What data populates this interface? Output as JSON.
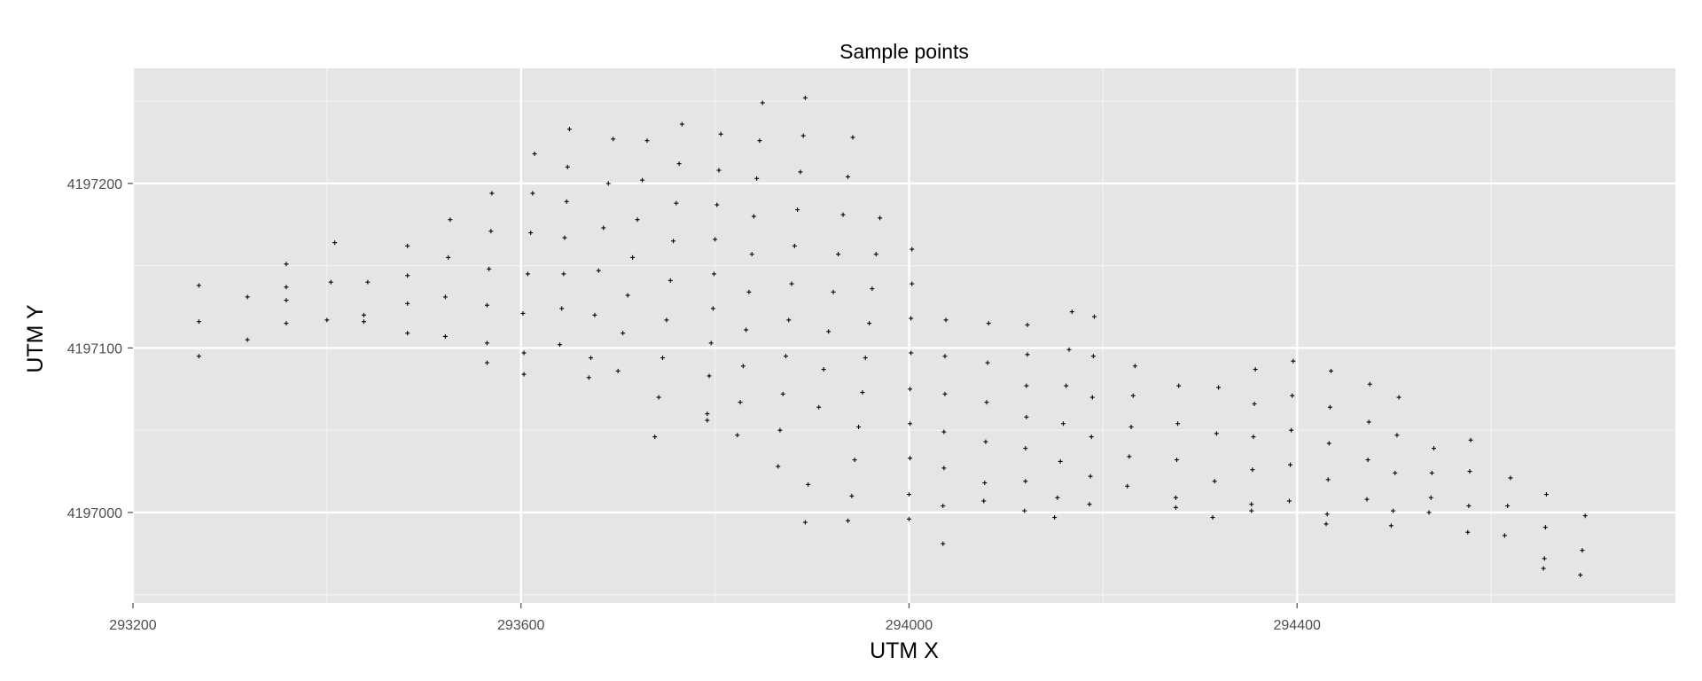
{
  "chart_data": {
    "type": "scatter",
    "title": "Sample points",
    "xlabel": "UTM X",
    "ylabel": "UTM Y",
    "xlim": [
      293200,
      294790
    ],
    "ylim": [
      4196945,
      4197270
    ],
    "x_ticks": [
      293200,
      293600,
      294000,
      294400
    ],
    "x_tick_labels": [
      "293200",
      "293600",
      "294000",
      "294400"
    ],
    "y_ticks": [
      4197000,
      4197100,
      4197200
    ],
    "y_tick_labels": [
      "4197000",
      "4197100",
      "4197200"
    ],
    "grid": true,
    "legend": "none",
    "marker": "plus",
    "points": [
      [
        293268,
        4197138
      ],
      [
        293268,
        4197116
      ],
      [
        293268,
        4197095
      ],
      [
        293318,
        4197131
      ],
      [
        293318,
        4197105
      ],
      [
        293358,
        4197151
      ],
      [
        293358,
        4197137
      ],
      [
        293358,
        4197129
      ],
      [
        293358,
        4197115
      ],
      [
        293400,
        4197117
      ],
      [
        293404,
        4197140
      ],
      [
        293408,
        4197164
      ],
      [
        293438,
        4197120
      ],
      [
        293438,
        4197116
      ],
      [
        293442,
        4197140
      ],
      [
        293483,
        4197162
      ],
      [
        293483,
        4197144
      ],
      [
        293483,
        4197127
      ],
      [
        293483,
        4197109
      ],
      [
        293522,
        4197131
      ],
      [
        293522,
        4197107
      ],
      [
        293525,
        4197155
      ],
      [
        293527,
        4197178
      ],
      [
        293565,
        4197126
      ],
      [
        293565,
        4197103
      ],
      [
        293565,
        4197091
      ],
      [
        293567,
        4197148
      ],
      [
        293569,
        4197171
      ],
      [
        293570,
        4197194
      ],
      [
        293602,
        4197121
      ],
      [
        293603,
        4197097
      ],
      [
        293603,
        4197084
      ],
      [
        293607,
        4197145
      ],
      [
        293610,
        4197170
      ],
      [
        293612,
        4197194
      ],
      [
        293614,
        4197218
      ],
      [
        293640,
        4197102
      ],
      [
        293642,
        4197124
      ],
      [
        293644,
        4197145
      ],
      [
        293645,
        4197167
      ],
      [
        293647,
        4197189
      ],
      [
        293648,
        4197210
      ],
      [
        293650,
        4197233
      ],
      [
        293670,
        4197082
      ],
      [
        293672,
        4197094
      ],
      [
        293676,
        4197120
      ],
      [
        293680,
        4197147
      ],
      [
        293685,
        4197173
      ],
      [
        293690,
        4197200
      ],
      [
        293695,
        4197227
      ],
      [
        293700,
        4197086
      ],
      [
        293705,
        4197109
      ],
      [
        293710,
        4197132
      ],
      [
        293715,
        4197155
      ],
      [
        293720,
        4197178
      ],
      [
        293725,
        4197202
      ],
      [
        293730,
        4197226
      ],
      [
        293738,
        4197046
      ],
      [
        293742,
        4197070
      ],
      [
        293746,
        4197094
      ],
      [
        293750,
        4197117
      ],
      [
        293754,
        4197141
      ],
      [
        293757,
        4197165
      ],
      [
        293760,
        4197188
      ],
      [
        293763,
        4197212
      ],
      [
        293766,
        4197236
      ],
      [
        293792,
        4197056
      ],
      [
        293792,
        4197060
      ],
      [
        293794,
        4197083
      ],
      [
        293796,
        4197103
      ],
      [
        293798,
        4197124
      ],
      [
        293799,
        4197145
      ],
      [
        293800,
        4197166
      ],
      [
        293802,
        4197187
      ],
      [
        293804,
        4197208
      ],
      [
        293806,
        4197230
      ],
      [
        293823,
        4197047
      ],
      [
        293826,
        4197067
      ],
      [
        293829,
        4197089
      ],
      [
        293832,
        4197111
      ],
      [
        293835,
        4197134
      ],
      [
        293838,
        4197157
      ],
      [
        293840,
        4197180
      ],
      [
        293843,
        4197203
      ],
      [
        293846,
        4197226
      ],
      [
        293849,
        4197249
      ],
      [
        293865,
        4197028
      ],
      [
        293867,
        4197050
      ],
      [
        293870,
        4197072
      ],
      [
        293873,
        4197095
      ],
      [
        293876,
        4197117
      ],
      [
        293879,
        4197139
      ],
      [
        293882,
        4197162
      ],
      [
        293885,
        4197184
      ],
      [
        293888,
        4197207
      ],
      [
        293891,
        4197229
      ],
      [
        293893,
        4197252
      ],
      [
        293893,
        4196994
      ],
      [
        293896,
        4197017
      ],
      [
        293907,
        4197064
      ],
      [
        293912,
        4197087
      ],
      [
        293917,
        4197110
      ],
      [
        293922,
        4197134
      ],
      [
        293927,
        4197157
      ],
      [
        293932,
        4197181
      ],
      [
        293937,
        4197204
      ],
      [
        293942,
        4197228
      ],
      [
        293937,
        4196995
      ],
      [
        293941,
        4197010
      ],
      [
        293944,
        4197032
      ],
      [
        293948,
        4197052
      ],
      [
        293952,
        4197073
      ],
      [
        293955,
        4197094
      ],
      [
        293959,
        4197115
      ],
      [
        293962,
        4197136
      ],
      [
        293966,
        4197157
      ],
      [
        293970,
        4197179
      ],
      [
        294000,
        4196996
      ],
      [
        294000,
        4197011
      ],
      [
        294001,
        4197033
      ],
      [
        294001,
        4197054
      ],
      [
        294001,
        4197075
      ],
      [
        294002,
        4197097
      ],
      [
        294002,
        4197118
      ],
      [
        294003,
        4197139
      ],
      [
        294003,
        4197160
      ],
      [
        294035,
        4196981
      ],
      [
        294035,
        4197004
      ],
      [
        294036,
        4197027
      ],
      [
        294036,
        4197049
      ],
      [
        294037,
        4197072
      ],
      [
        294037,
        4197095
      ],
      [
        294038,
        4197117
      ],
      [
        294077,
        4197007
      ],
      [
        294078,
        4197018
      ],
      [
        294079,
        4197043
      ],
      [
        294080,
        4197067
      ],
      [
        294081,
        4197091
      ],
      [
        294082,
        4197115
      ],
      [
        294119,
        4197001
      ],
      [
        294120,
        4197019
      ],
      [
        294120,
        4197039
      ],
      [
        294121,
        4197058
      ],
      [
        294121,
        4197077
      ],
      [
        294122,
        4197096
      ],
      [
        294122,
        4197114
      ],
      [
        294150,
        4196997
      ],
      [
        294153,
        4197009
      ],
      [
        294156,
        4197031
      ],
      [
        294159,
        4197054
      ],
      [
        294162,
        4197077
      ],
      [
        294165,
        4197099
      ],
      [
        294168,
        4197122
      ],
      [
        294186,
        4197005
      ],
      [
        294187,
        4197022
      ],
      [
        294188,
        4197046
      ],
      [
        294189,
        4197070
      ],
      [
        294190,
        4197095
      ],
      [
        294191,
        4197119
      ],
      [
        294225,
        4197016
      ],
      [
        294227,
        4197034
      ],
      [
        294229,
        4197052
      ],
      [
        294231,
        4197071
      ],
      [
        294233,
        4197089
      ],
      [
        294275,
        4197003
      ],
      [
        294275,
        4197009
      ],
      [
        294276,
        4197032
      ],
      [
        294277,
        4197054
      ],
      [
        294278,
        4197077
      ],
      [
        294313,
        4196997
      ],
      [
        294315,
        4197019
      ],
      [
        294317,
        4197048
      ],
      [
        294319,
        4197076
      ],
      [
        294353,
        4197001
      ],
      [
        294353,
        4197005
      ],
      [
        294354,
        4197026
      ],
      [
        294355,
        4197046
      ],
      [
        294356,
        4197066
      ],
      [
        294357,
        4197087
      ],
      [
        294392,
        4197007
      ],
      [
        294393,
        4197029
      ],
      [
        294394,
        4197050
      ],
      [
        294395,
        4197071
      ],
      [
        294396,
        4197092
      ],
      [
        294430,
        4196993
      ],
      [
        294431,
        4196999
      ],
      [
        294432,
        4197020
      ],
      [
        294433,
        4197042
      ],
      [
        294434,
        4197064
      ],
      [
        294435,
        4197086
      ],
      [
        294472,
        4197008
      ],
      [
        294473,
        4197032
      ],
      [
        294474,
        4197055
      ],
      [
        294475,
        4197078
      ],
      [
        294497,
        4196992
      ],
      [
        294499,
        4197001
      ],
      [
        294501,
        4197024
      ],
      [
        294503,
        4197047
      ],
      [
        294505,
        4197070
      ],
      [
        294536,
        4197000
      ],
      [
        294538,
        4197009
      ],
      [
        294539,
        4197024
      ],
      [
        294541,
        4197039
      ],
      [
        294576,
        4196988
      ],
      [
        294577,
        4197004
      ],
      [
        294578,
        4197025
      ],
      [
        294579,
        4197044
      ],
      [
        294614,
        4196986
      ],
      [
        294617,
        4197004
      ],
      [
        294620,
        4197021
      ],
      [
        294654,
        4196966
      ],
      [
        294655,
        4196972
      ],
      [
        294656,
        4196991
      ],
      [
        294657,
        4197011
      ],
      [
        294692,
        4196962
      ],
      [
        294694,
        4196977
      ],
      [
        294697,
        4196998
      ]
    ]
  }
}
